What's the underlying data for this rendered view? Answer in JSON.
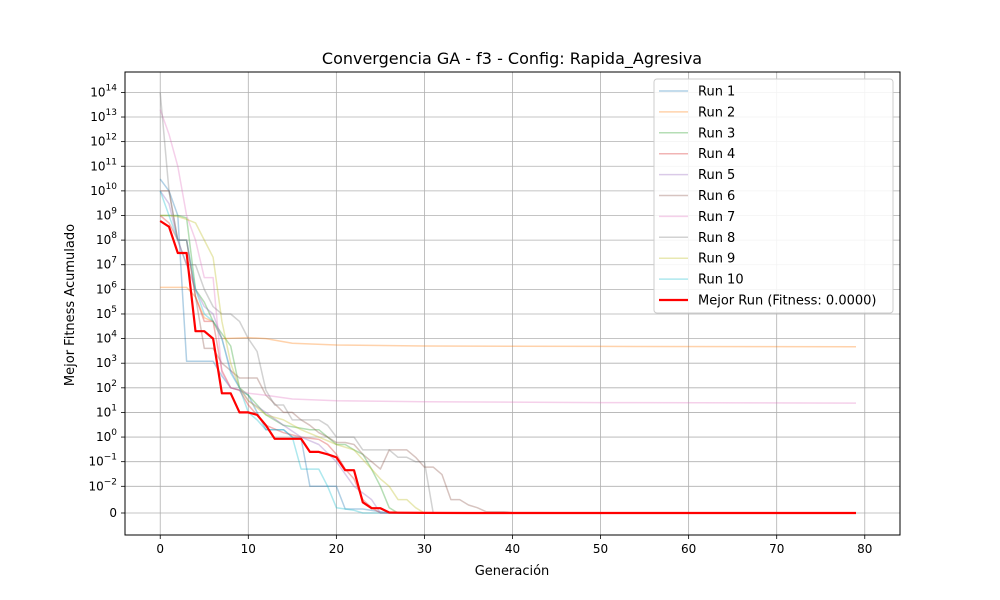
{
  "chart_data": {
    "type": "line",
    "title": "Convergencia GA - f3 - Config: Rapida_Agresiva",
    "xlabel": "Generación",
    "ylabel": "Mejor Fitness Acumulado",
    "xlim": [
      -4,
      84
    ],
    "x_ticks": [
      {
        "value": 0,
        "label": "0"
      },
      {
        "value": 10,
        "label": "10"
      },
      {
        "value": 20,
        "label": "20"
      },
      {
        "value": 30,
        "label": "30"
      },
      {
        "value": 40,
        "label": "40"
      },
      {
        "value": 50,
        "label": "50"
      },
      {
        "value": 60,
        "label": "60"
      },
      {
        "value": 70,
        "label": "70"
      },
      {
        "value": 80,
        "label": "80"
      }
    ],
    "y_scale": "symlog (linthresh 0.01)",
    "y_ticks": [
      {
        "value": 0,
        "base": "0",
        "exp": ""
      },
      {
        "value": 0.01,
        "base": "10",
        "exp": "−2"
      },
      {
        "value": 0.1,
        "base": "10",
        "exp": "−1"
      },
      {
        "value": 1,
        "base": "10",
        "exp": "0"
      },
      {
        "value": 10,
        "base": "10",
        "exp": "1"
      },
      {
        "value": 100,
        "base": "10",
        "exp": "2"
      },
      {
        "value": 1000,
        "base": "10",
        "exp": "3"
      },
      {
        "value": 10000,
        "base": "10",
        "exp": "4"
      },
      {
        "value": 100000,
        "base": "10",
        "exp": "5"
      },
      {
        "value": 1000000,
        "base": "10",
        "exp": "6"
      },
      {
        "value": 10000000,
        "base": "10",
        "exp": "7"
      },
      {
        "value": 100000000,
        "base": "10",
        "exp": "8"
      },
      {
        "value": 1000000000,
        "base": "10",
        "exp": "9"
      },
      {
        "value": 10000000000,
        "base": "10",
        "exp": "10"
      },
      {
        "value": 100000000000,
        "base": "10",
        "exp": "11"
      },
      {
        "value": 1000000000000,
        "base": "10",
        "exp": "12"
      },
      {
        "value": 10000000000000,
        "base": "10",
        "exp": "13"
      },
      {
        "value": 100000000000000,
        "base": "10",
        "exp": "14"
      }
    ],
    "grid": true,
    "legend_position": "top-right",
    "series": [
      {
        "name": "Run 1",
        "color": "#1f77b4",
        "points": [
          [
            0,
            30000000000.0
          ],
          [
            1,
            10000000000.0
          ],
          [
            2,
            1000000000.0
          ],
          [
            3,
            1200.0
          ],
          [
            5,
            1200.0
          ],
          [
            6,
            1200.0
          ],
          [
            7,
            300.0
          ],
          [
            8,
            100.0
          ],
          [
            9,
            80.0
          ],
          [
            10,
            50.0
          ],
          [
            11,
            10.0
          ],
          [
            12,
            2
          ],
          [
            14,
            2
          ],
          [
            15,
            1
          ],
          [
            16,
            0.9
          ],
          [
            17,
            0.01
          ],
          [
            19,
            0.01
          ],
          [
            20,
            0.01
          ],
          [
            21,
            0.0015
          ],
          [
            23,
            0.0015
          ],
          [
            25,
            0.0005
          ],
          [
            26,
            0
          ],
          [
            79,
            0
          ]
        ]
      },
      {
        "name": "Run 2",
        "color": "#ff7f0e",
        "points": [
          [
            0,
            1200000.0
          ],
          [
            2,
            1200000.0
          ],
          [
            3,
            1200000.0
          ],
          [
            4,
            500000.0
          ],
          [
            5,
            70000.0
          ],
          [
            6,
            50000.0
          ],
          [
            7,
            10000.0
          ],
          [
            10,
            11000.0
          ],
          [
            12,
            10000.0
          ],
          [
            15,
            6500.0
          ],
          [
            20,
            5500.0
          ],
          [
            30,
            5000.0
          ],
          [
            50,
            4800.0
          ],
          [
            79,
            4700.0
          ]
        ]
      },
      {
        "name": "Run 3",
        "color": "#2ca02c",
        "points": [
          [
            0,
            1000000000.0
          ],
          [
            2,
            1000000000.0
          ],
          [
            3,
            800000000.0
          ],
          [
            4,
            1000000.0
          ],
          [
            5,
            300000.0
          ],
          [
            6,
            50000.0
          ],
          [
            8,
            5000.0
          ],
          [
            9,
            100.0
          ],
          [
            10,
            50.0
          ],
          [
            12,
            8
          ],
          [
            14,
            3
          ],
          [
            17,
            2
          ],
          [
            18,
            2
          ],
          [
            19,
            1
          ],
          [
            20,
            0.5
          ],
          [
            21,
            0.5
          ],
          [
            22,
            0.3
          ],
          [
            23,
            0.2
          ],
          [
            24,
            0.05
          ],
          [
            25,
            0.01
          ],
          [
            26,
            0.002
          ],
          [
            27,
            0
          ],
          [
            79,
            0
          ]
        ]
      },
      {
        "name": "Run 4",
        "color": "#d62728",
        "points": [
          [
            0,
            1000000000.0
          ],
          [
            1,
            500000000.0
          ],
          [
            2,
            100000000.0
          ],
          [
            3,
            100000000.0
          ],
          [
            4,
            500000.0
          ],
          [
            5,
            50000.0
          ],
          [
            6,
            50000.0
          ],
          [
            7,
            500.0
          ],
          [
            8,
            100.0
          ],
          [
            9,
            80.0
          ],
          [
            10,
            20.0
          ],
          [
            12,
            3
          ],
          [
            14,
            1.5
          ],
          [
            16,
            1
          ],
          [
            18,
            0.8
          ],
          [
            19,
            0.5
          ],
          [
            20,
            0.2
          ],
          [
            21,
            0.05
          ],
          [
            22,
            0.02
          ],
          [
            23,
            0.005
          ],
          [
            24,
            0.002
          ],
          [
            25,
            0
          ],
          [
            79,
            0
          ]
        ]
      },
      {
        "name": "Run 5",
        "color": "#9467bd",
        "points": [
          [
            0,
            10000000000.0
          ],
          [
            1,
            3000000000.0
          ],
          [
            2,
            100000000.0
          ],
          [
            3,
            10000000.0
          ],
          [
            4,
            1000000.0
          ],
          [
            5,
            200000.0
          ],
          [
            6,
            100000.0
          ],
          [
            7,
            10000.0
          ],
          [
            8,
            500.0
          ],
          [
            9,
            100.0
          ],
          [
            10,
            30.0
          ],
          [
            12,
            10.0
          ],
          [
            14,
            3
          ],
          [
            16,
            1
          ],
          [
            18,
            0.5
          ],
          [
            20,
            0.1
          ],
          [
            22,
            0.01
          ],
          [
            24,
            0.005
          ],
          [
            25,
            0
          ],
          [
            79,
            0
          ]
        ]
      },
      {
        "name": "Run 6",
        "color": "#8c564b",
        "points": [
          [
            0,
            10000000000.0
          ],
          [
            1,
            10000000000.0
          ],
          [
            2,
            100000000.0
          ],
          [
            3,
            100000000.0
          ],
          [
            4,
            500000.0
          ],
          [
            5,
            4000.0
          ],
          [
            6,
            4000.0
          ],
          [
            7,
            1000.0
          ],
          [
            9,
            250.0
          ],
          [
            11,
            250.0
          ],
          [
            12,
            50.0
          ],
          [
            14,
            10.0
          ],
          [
            15,
            10.0
          ],
          [
            16,
            5
          ],
          [
            17,
            3
          ],
          [
            18,
            1.5
          ],
          [
            19,
            1
          ],
          [
            20,
            0.6
          ],
          [
            21,
            0.6
          ],
          [
            22,
            0.5
          ],
          [
            23,
            0.2
          ],
          [
            24,
            0.1
          ],
          [
            25,
            0.05
          ],
          [
            26,
            0.3
          ],
          [
            28,
            0.3
          ],
          [
            29,
            0.15
          ],
          [
            30,
            0.06
          ],
          [
            31,
            0.06
          ],
          [
            32,
            0.03
          ],
          [
            33,
            0.005
          ],
          [
            34,
            0.005
          ],
          [
            35,
            0.003
          ],
          [
            36,
            0.002
          ],
          [
            37,
            0.0005
          ],
          [
            39,
            0.0005
          ],
          [
            40,
            0.0002
          ],
          [
            45,
            0.0001
          ],
          [
            50,
            0
          ],
          [
            79,
            0
          ]
        ]
      },
      {
        "name": "Run 7",
        "color": "#e377c2",
        "points": [
          [
            0,
            20000000000000.0
          ],
          [
            1,
            2000000000000.0
          ],
          [
            2,
            100000000000.0
          ],
          [
            3,
            1000000000.0
          ],
          [
            4,
            100000000.0
          ],
          [
            5,
            3000000.0
          ],
          [
            6,
            3000000.0
          ],
          [
            7,
            400.0
          ],
          [
            8,
            100.0
          ],
          [
            9,
            80.0
          ],
          [
            10,
            60.0
          ],
          [
            12,
            50.0
          ],
          [
            15,
            35.0
          ],
          [
            20,
            30.0
          ],
          [
            30,
            27.0
          ],
          [
            50,
            25.0
          ],
          [
            79,
            24.0
          ]
        ]
      },
      {
        "name": "Run 8",
        "color": "#7f7f7f",
        "points": [
          [
            0,
            100000000000000.0
          ],
          [
            1,
            10000000000.0
          ],
          [
            2,
            100000000.0
          ],
          [
            3,
            10000000.0
          ],
          [
            4,
            10000000.0
          ],
          [
            5,
            1000000.0
          ],
          [
            6,
            200000.0
          ],
          [
            7,
            100000.0
          ],
          [
            8,
            100000.0
          ],
          [
            9,
            50000.0
          ],
          [
            10,
            10000.0
          ],
          [
            11,
            3000.0
          ],
          [
            12,
            80.0
          ],
          [
            13,
            20.0
          ],
          [
            14,
            20.0
          ],
          [
            15,
            5
          ],
          [
            16,
            5
          ],
          [
            17,
            5
          ],
          [
            18,
            5
          ],
          [
            19,
            3
          ],
          [
            20,
            1
          ],
          [
            21,
            1
          ],
          [
            22,
            1
          ],
          [
            23,
            0.3
          ],
          [
            24,
            0.3
          ],
          [
            26,
            0.3
          ],
          [
            27,
            0.15
          ],
          [
            28,
            0.15
          ],
          [
            29,
            0.1
          ],
          [
            30,
            0.1
          ],
          [
            31,
            0
          ],
          [
            79,
            0
          ]
        ]
      },
      {
        "name": "Run 9",
        "color": "#bcbd22",
        "points": [
          [
            0,
            1000000000.0
          ],
          [
            1,
            1000000000.0
          ],
          [
            2,
            900000000.0
          ],
          [
            3,
            700000000.0
          ],
          [
            4,
            500000000.0
          ],
          [
            5,
            100000000.0
          ],
          [
            6,
            20000000.0
          ],
          [
            7,
            50000.0
          ],
          [
            8,
            1000.0
          ],
          [
            9,
            100.0
          ],
          [
            10,
            30.0
          ],
          [
            12,
            8
          ],
          [
            14,
            5
          ],
          [
            16,
            2
          ],
          [
            18,
            1
          ],
          [
            20,
            0.5
          ],
          [
            22,
            0.3
          ],
          [
            24,
            0.05
          ],
          [
            25,
            0.02
          ],
          [
            26,
            0.01
          ],
          [
            27,
            0.005
          ],
          [
            28,
            0.005
          ],
          [
            29,
            0.002
          ],
          [
            30,
            0
          ],
          [
            79,
            0
          ]
        ]
      },
      {
        "name": "Run 10",
        "color": "#17becf",
        "points": [
          [
            0,
            10000000000.0
          ],
          [
            1,
            1000000000.0
          ],
          [
            2,
            100000000.0
          ],
          [
            3,
            100000000.0
          ],
          [
            4,
            1000000.0
          ],
          [
            5,
            100000.0
          ],
          [
            6,
            50000.0
          ],
          [
            7,
            10000.0
          ],
          [
            8,
            400.0
          ],
          [
            9,
            100.0
          ],
          [
            10,
            10.0
          ],
          [
            11,
            5
          ],
          [
            12,
            2
          ],
          [
            14,
            2
          ],
          [
            15,
            1
          ],
          [
            16,
            0.05
          ],
          [
            17,
            0.05
          ],
          [
            18,
            0.05
          ],
          [
            19,
            0.01
          ],
          [
            20,
            0.002
          ],
          [
            22,
            0.001
          ],
          [
            23,
            0
          ],
          [
            79,
            0
          ]
        ]
      },
      {
        "name": "Mejor Run (Fitness: 0.0000)",
        "color": "#ff0000",
        "best": true,
        "points": [
          [
            0,
            600000000.0
          ],
          [
            1,
            350000000.0
          ],
          [
            2,
            30000000.0
          ],
          [
            3,
            30000000.0
          ],
          [
            4,
            20000.0
          ],
          [
            5,
            20000.0
          ],
          [
            6,
            10000.0
          ],
          [
            7,
            60.0
          ],
          [
            8,
            60.0
          ],
          [
            9,
            10.0
          ],
          [
            10,
            10.0
          ],
          [
            11,
            8
          ],
          [
            12,
            3
          ],
          [
            13,
            0.85
          ],
          [
            14,
            0.85
          ],
          [
            15,
            0.85
          ],
          [
            16,
            0.85
          ],
          [
            17,
            0.25
          ],
          [
            18,
            0.25
          ],
          [
            19,
            0.2
          ],
          [
            20,
            0.15
          ],
          [
            21,
            0.045
          ],
          [
            22,
            0.045
          ],
          [
            23,
            0.004
          ],
          [
            24,
            0.0018
          ],
          [
            25,
            0.0018
          ],
          [
            26,
            0.0002
          ],
          [
            27,
            0.0001
          ],
          [
            30,
            3e-05
          ],
          [
            35,
            0
          ],
          [
            79,
            0
          ]
        ]
      }
    ]
  }
}
